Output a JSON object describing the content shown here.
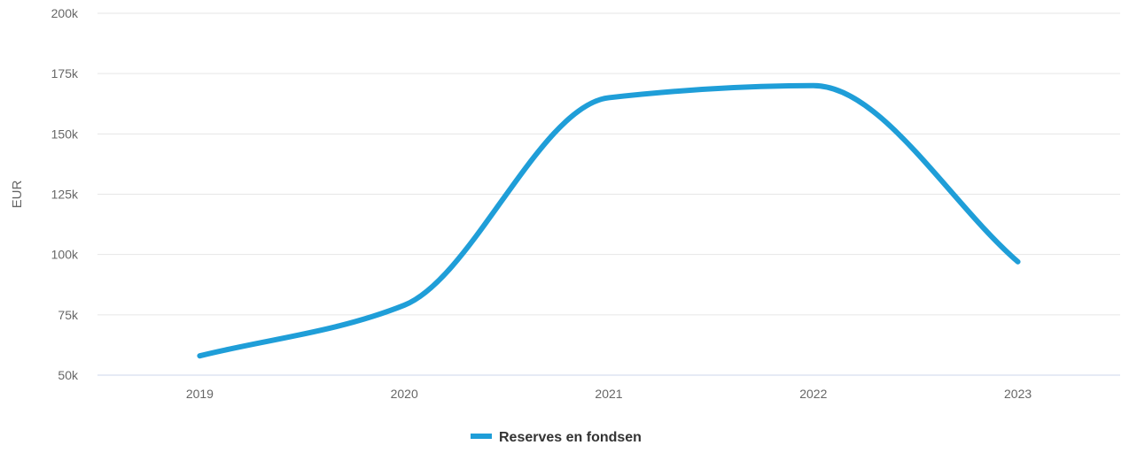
{
  "chart_data": {
    "type": "line",
    "title": "",
    "xlabel": "",
    "ylabel": "EUR",
    "categories": [
      "2019",
      "2020",
      "2021",
      "2022",
      "2023"
    ],
    "series": [
      {
        "name": "Reserves en fondsen",
        "values": [
          58000,
          79000,
          165000,
          170000,
          97000
        ],
        "color": "#1f9ed8"
      }
    ],
    "ylim": [
      50000,
      200000
    ],
    "y_ticks": [
      50000,
      75000,
      100000,
      125000,
      150000,
      175000,
      200000
    ],
    "y_tick_labels": [
      "50k",
      "75k",
      "100k",
      "125k",
      "150k",
      "175k",
      "200k"
    ],
    "grid": true,
    "smooth": true,
    "legend_position": "bottom-center"
  }
}
